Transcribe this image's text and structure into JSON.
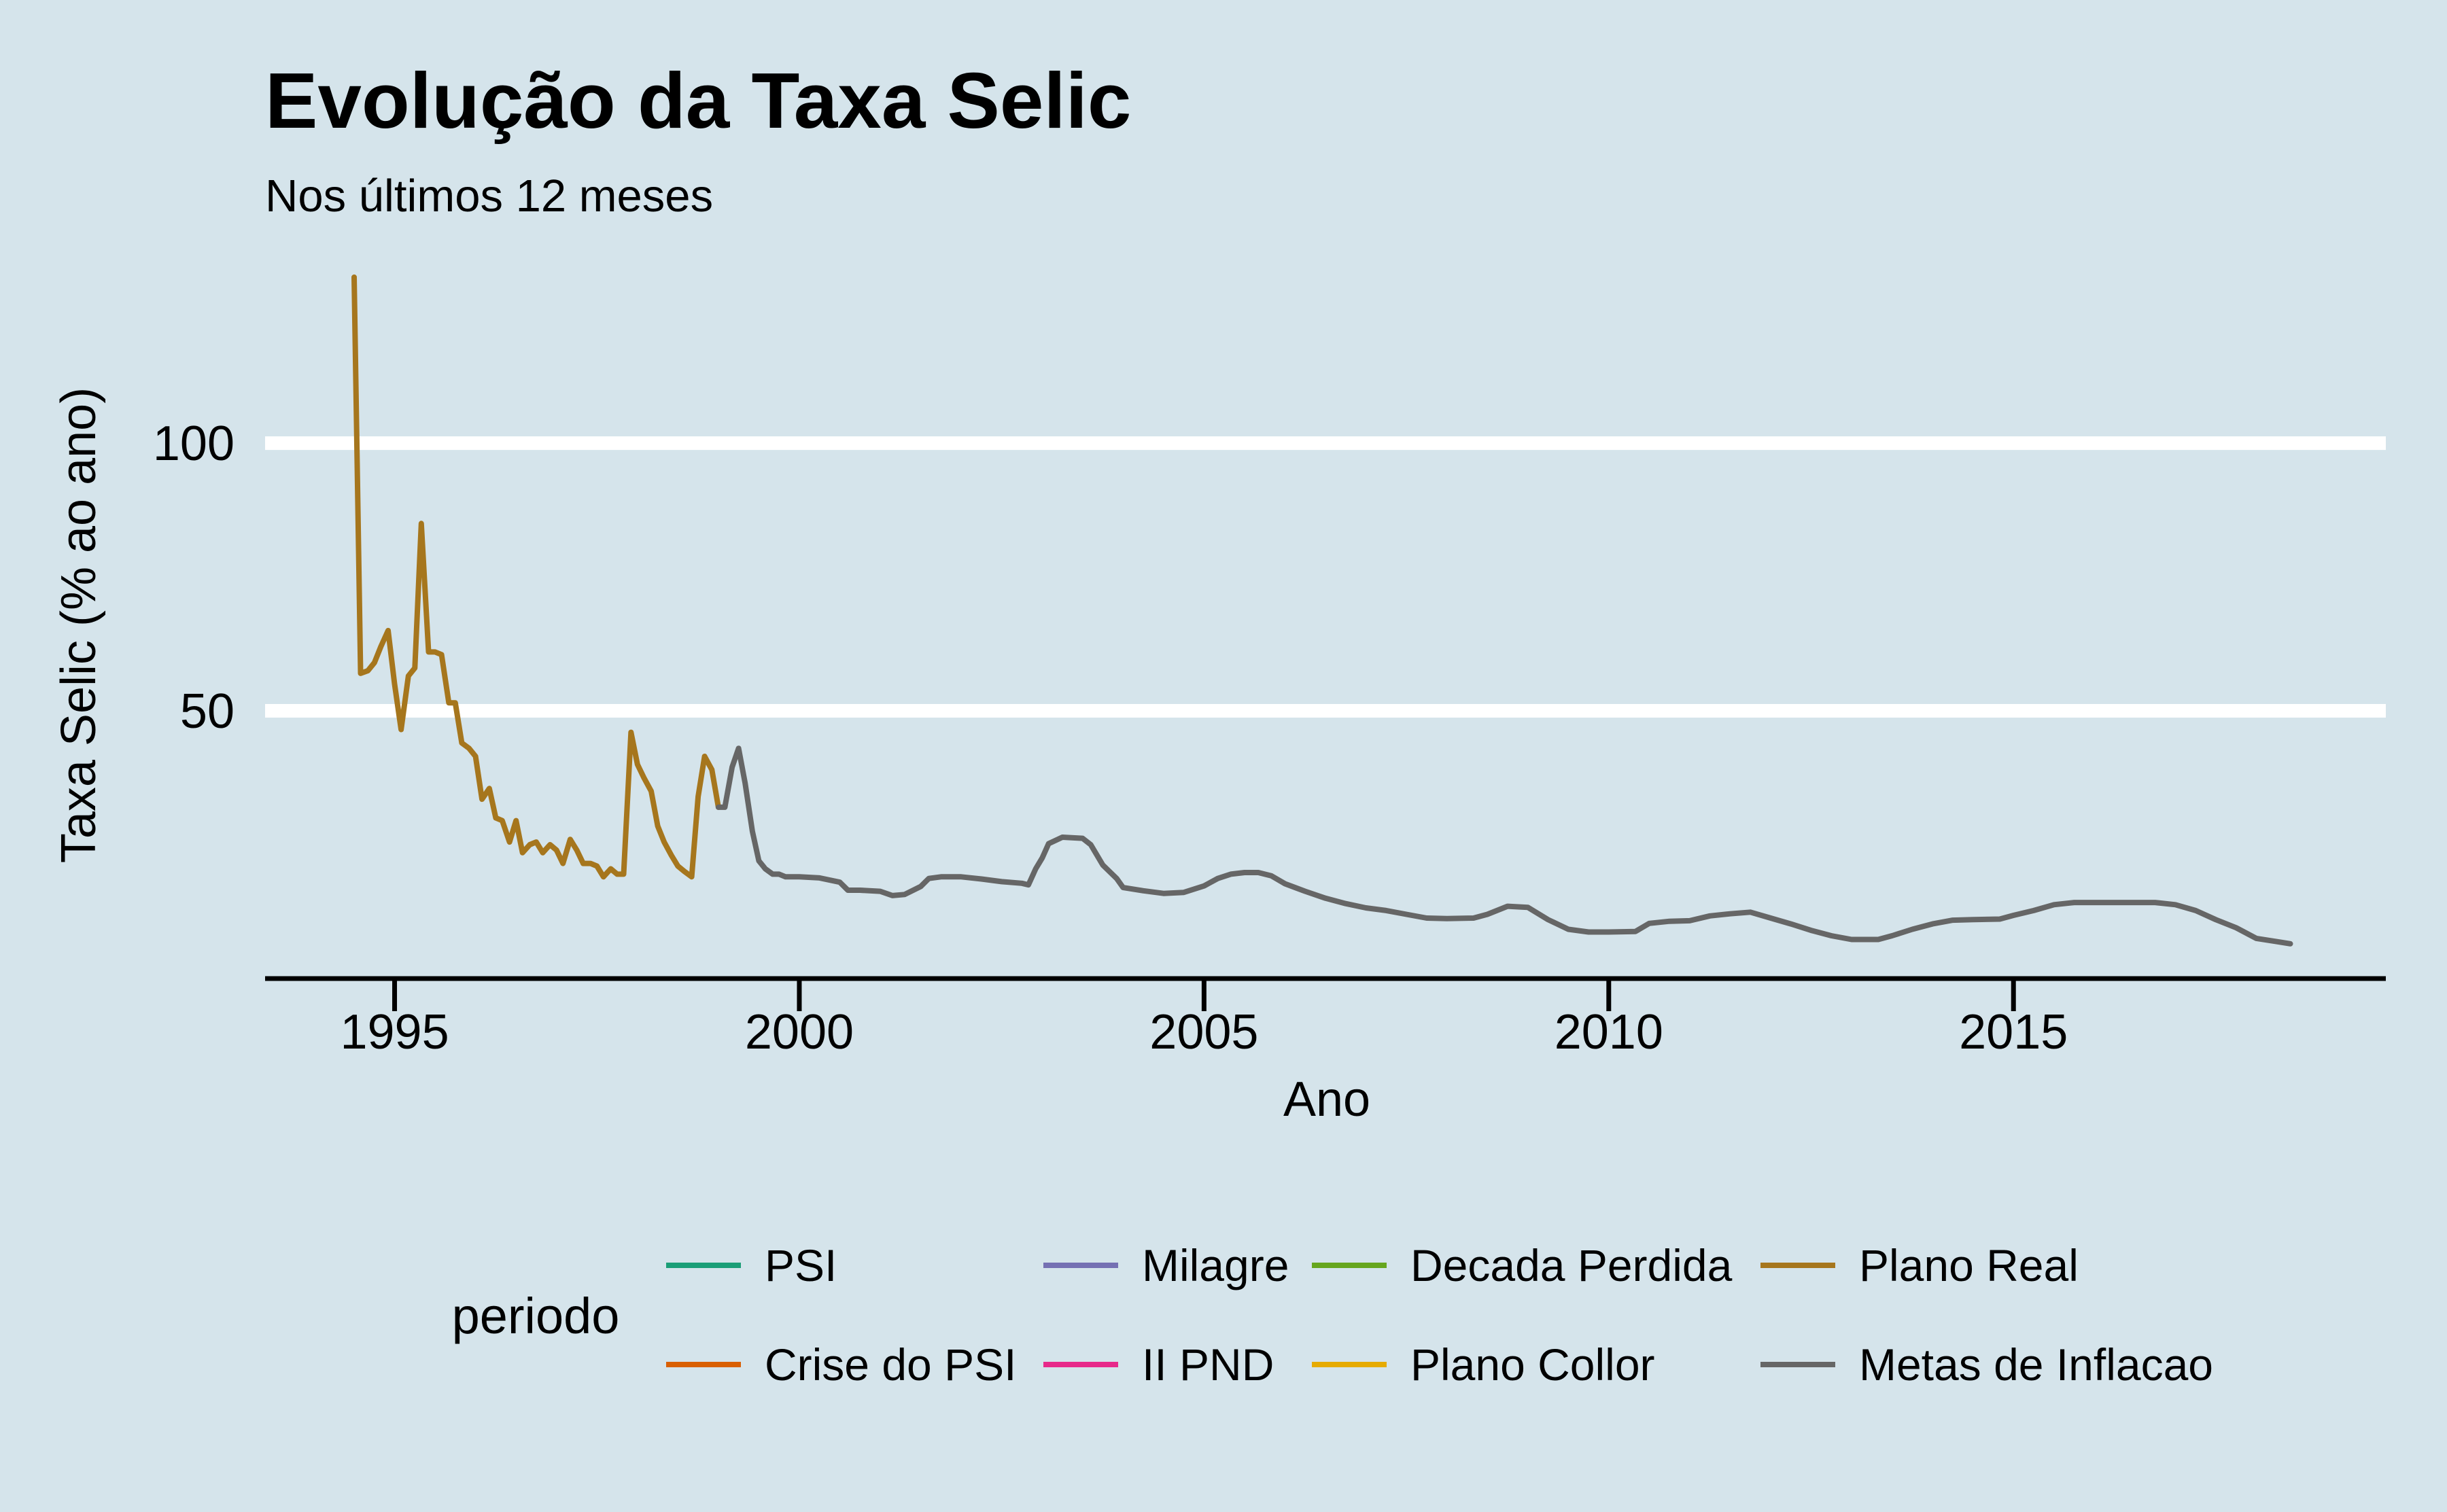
{
  "chart_data": {
    "type": "line",
    "title": "Evolução da Taxa Selic",
    "subtitle": "Nos últimos 12 meses",
    "xlabel": "Ano",
    "ylabel": "Taxa Selic (% ao ano)",
    "xlim": [
      1993.4,
      2019.6
    ],
    "ylim": [
      0,
      132
    ],
    "x_ticks": [
      1995,
      2000,
      2005,
      2010,
      2015
    ],
    "y_ticks": [
      50,
      100
    ],
    "grid": "horizontal major lines (white)",
    "legend": {
      "title": "periodo",
      "position": "bottom",
      "entries": [
        {
          "name": "PSI",
          "color": "#1b9e77"
        },
        {
          "name": "Crise do PSI",
          "color": "#d95f02"
        },
        {
          "name": "Milagre",
          "color": "#7570b3"
        },
        {
          "name": "II PND",
          "color": "#e7298a"
        },
        {
          "name": "Decada Perdida",
          "color": "#66a61e"
        },
        {
          "name": "Plano Collor",
          "color": "#e6ab02"
        },
        {
          "name": "Plano Real",
          "color": "#a6761d"
        },
        {
          "name": "Metas de Inflacao",
          "color": "#666666"
        }
      ]
    },
    "series": [
      {
        "name": "Plano Real",
        "color": "#a6761d",
        "points": [
          [
            1994.5,
            131
          ],
          [
            1994.58,
            57
          ],
          [
            1994.67,
            57.5
          ],
          [
            1994.75,
            59
          ],
          [
            1994.83,
            62
          ],
          [
            1994.92,
            65
          ],
          [
            1995.0,
            55
          ],
          [
            1995.08,
            46.5
          ],
          [
            1995.17,
            56.5
          ],
          [
            1995.25,
            58
          ],
          [
            1995.33,
            85
          ],
          [
            1995.42,
            61
          ],
          [
            1995.5,
            61
          ],
          [
            1995.58,
            60.5
          ],
          [
            1995.67,
            51.5
          ],
          [
            1995.75,
            51.5
          ],
          [
            1995.83,
            44
          ],
          [
            1995.92,
            43
          ],
          [
            1996.0,
            41.5
          ],
          [
            1996.08,
            33.5
          ],
          [
            1996.17,
            35.5
          ],
          [
            1996.25,
            30
          ],
          [
            1996.33,
            29.5
          ],
          [
            1996.42,
            25.5
          ],
          [
            1996.5,
            29.5
          ],
          [
            1996.58,
            23.5
          ],
          [
            1996.67,
            25
          ],
          [
            1996.75,
            25.5
          ],
          [
            1996.83,
            23.5
          ],
          [
            1996.92,
            25
          ],
          [
            1997.0,
            24
          ],
          [
            1997.08,
            21.5
          ],
          [
            1997.17,
            26
          ],
          [
            1997.25,
            24
          ],
          [
            1997.33,
            21.5
          ],
          [
            1997.42,
            21.5
          ],
          [
            1997.5,
            21
          ],
          [
            1997.58,
            19
          ],
          [
            1997.67,
            20.5
          ],
          [
            1997.75,
            19.5
          ],
          [
            1997.83,
            19.5
          ],
          [
            1997.92,
            46
          ],
          [
            1998.0,
            40
          ],
          [
            1998.08,
            37.5
          ],
          [
            1998.17,
            35
          ],
          [
            1998.25,
            28.5
          ],
          [
            1998.33,
            25.5
          ],
          [
            1998.42,
            23
          ],
          [
            1998.5,
            21
          ],
          [
            1998.58,
            20
          ],
          [
            1998.67,
            19
          ],
          [
            1998.75,
            34
          ],
          [
            1998.83,
            41.5
          ],
          [
            1998.92,
            39
          ],
          [
            1999.0,
            32
          ]
        ]
      },
      {
        "name": "Metas de Inflacao",
        "color": "#666666",
        "points": [
          [
            1999.0,
            32
          ],
          [
            1999.08,
            32
          ],
          [
            1999.17,
            39.5
          ],
          [
            1999.25,
            43
          ],
          [
            1999.33,
            36.5
          ],
          [
            1999.42,
            27.5
          ],
          [
            1999.5,
            22
          ],
          [
            1999.58,
            20.5
          ],
          [
            1999.67,
            19.5
          ],
          [
            1999.75,
            19.5
          ],
          [
            1999.83,
            19
          ],
          [
            1999.92,
            19
          ],
          [
            2000.0,
            19
          ],
          [
            2000.25,
            18.8
          ],
          [
            2000.5,
            18
          ],
          [
            2000.6,
            16.5
          ],
          [
            2000.75,
            16.5
          ],
          [
            2001.0,
            16.3
          ],
          [
            2001.15,
            15.5
          ],
          [
            2001.3,
            15.7
          ],
          [
            2001.5,
            17.2
          ],
          [
            2001.6,
            18.7
          ],
          [
            2001.75,
            19
          ],
          [
            2002.0,
            19
          ],
          [
            2002.25,
            18.6
          ],
          [
            2002.5,
            18.1
          ],
          [
            2002.75,
            17.8
          ],
          [
            2002.83,
            17.5
          ],
          [
            2002.92,
            20.5
          ],
          [
            2003.0,
            22.5
          ],
          [
            2003.08,
            25.2
          ],
          [
            2003.25,
            26.4
          ],
          [
            2003.5,
            26.2
          ],
          [
            2003.6,
            25
          ],
          [
            2003.75,
            21.2
          ],
          [
            2003.92,
            18.7
          ],
          [
            2004.0,
            17
          ],
          [
            2004.25,
            16.4
          ],
          [
            2004.5,
            15.9
          ],
          [
            2004.75,
            16.1
          ],
          [
            2005.0,
            17.3
          ],
          [
            2005.17,
            18.7
          ],
          [
            2005.33,
            19.5
          ],
          [
            2005.5,
            19.8
          ],
          [
            2005.67,
            19.8
          ],
          [
            2005.83,
            19.2
          ],
          [
            2006.0,
            17.7
          ],
          [
            2006.25,
            16.3
          ],
          [
            2006.5,
            15
          ],
          [
            2006.75,
            14
          ],
          [
            2007.0,
            13.2
          ],
          [
            2007.25,
            12.7
          ],
          [
            2007.5,
            12
          ],
          [
            2007.75,
            11.3
          ],
          [
            2008.0,
            11.2
          ],
          [
            2008.33,
            11.3
          ],
          [
            2008.5,
            12
          ],
          [
            2008.75,
            13.5
          ],
          [
            2009.0,
            13.3
          ],
          [
            2009.25,
            11
          ],
          [
            2009.5,
            9.2
          ],
          [
            2009.75,
            8.7
          ],
          [
            2010.0,
            8.7
          ],
          [
            2010.33,
            8.8
          ],
          [
            2010.5,
            10.3
          ],
          [
            2010.75,
            10.7
          ],
          [
            2011.0,
            10.8
          ],
          [
            2011.25,
            11.7
          ],
          [
            2011.5,
            12.1
          ],
          [
            2011.75,
            12.4
          ],
          [
            2012.0,
            11.3
          ],
          [
            2012.25,
            10.2
          ],
          [
            2012.5,
            9
          ],
          [
            2012.75,
            8
          ],
          [
            2013.0,
            7.3
          ],
          [
            2013.33,
            7.3
          ],
          [
            2013.5,
            8
          ],
          [
            2013.75,
            9.2
          ],
          [
            2014.0,
            10.2
          ],
          [
            2014.25,
            10.9
          ],
          [
            2014.5,
            11
          ],
          [
            2014.83,
            11.1
          ],
          [
            2015.0,
            11.8
          ],
          [
            2015.25,
            12.7
          ],
          [
            2015.5,
            13.8
          ],
          [
            2015.75,
            14.2
          ],
          [
            2016.0,
            14.2
          ],
          [
            2016.5,
            14.2
          ],
          [
            2016.75,
            14.2
          ],
          [
            2017.0,
            13.8
          ],
          [
            2017.25,
            12.7
          ],
          [
            2017.5,
            11
          ],
          [
            2017.75,
            9.5
          ],
          [
            2018.0,
            7.5
          ],
          [
            2018.25,
            6.9
          ],
          [
            2018.42,
            6.5
          ]
        ]
      }
    ]
  }
}
